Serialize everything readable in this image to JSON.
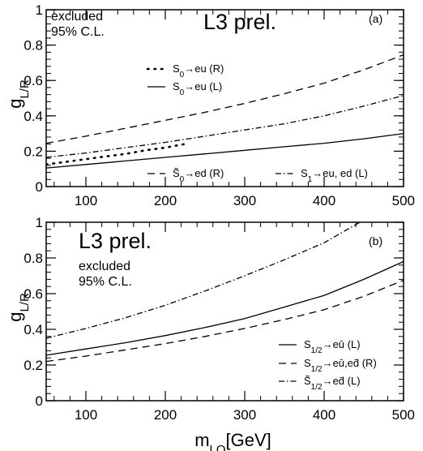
{
  "chart_data": [
    {
      "type": "line",
      "panel_tag": "(a)",
      "experiment_label": "L3 prel.",
      "region_label": [
        "excluded",
        "95% C.L."
      ],
      "ylabel_main": "g",
      "ylabel_sub": "L/R",
      "xlabel_main": "",
      "xlabel_sub": "",
      "xlabel_unit": "",
      "xlim": [
        50,
        500
      ],
      "ylim": [
        0,
        1
      ],
      "x_ticks": [
        100,
        200,
        300,
        400,
        500
      ],
      "y_ticks": [
        0,
        0.2,
        0.4,
        0.6,
        0.8,
        1
      ],
      "y_tick_labels": [
        "0",
        "0.2",
        "0.4",
        "0.6",
        "0.8",
        "1"
      ],
      "legend_placement": [
        "top-left",
        "bottom"
      ],
      "series": [
        {
          "legend": [
            {
              "t": "S"
            },
            {
              "t": "0",
              "sub": true
            },
            {
              "t": "→eu (R)"
            }
          ],
          "style": "dotted",
          "x": [
            50,
            75,
            100,
            125,
            150,
            175,
            200,
            230
          ],
          "y": [
            0.125,
            0.14,
            0.155,
            0.17,
            0.185,
            0.205,
            0.22,
            0.245
          ]
        },
        {
          "legend": [
            {
              "t": "S"
            },
            {
              "t": "0",
              "sub": true
            },
            {
              "t": "→eu (L)"
            }
          ],
          "style": "solid",
          "x": [
            50,
            100,
            150,
            200,
            250,
            300,
            350,
            400,
            450,
            500
          ],
          "y": [
            0.105,
            0.125,
            0.145,
            0.165,
            0.185,
            0.205,
            0.225,
            0.245,
            0.27,
            0.3
          ]
        },
        {
          "legend": [
            {
              "t": "S̃"
            },
            {
              "t": "0",
              "sub": true
            },
            {
              "t": "→ed (R)"
            }
          ],
          "style": "dashed",
          "x": [
            50,
            100,
            150,
            200,
            250,
            300,
            350,
            400,
            450,
            500
          ],
          "y": [
            0.245,
            0.285,
            0.33,
            0.375,
            0.42,
            0.47,
            0.525,
            0.585,
            0.66,
            0.745
          ]
        },
        {
          "legend": [
            {
              "t": "S"
            },
            {
              "t": "1",
              "sub": true
            },
            {
              "t": "→eu, ed (L)"
            }
          ],
          "style": "dashdot",
          "x": [
            50,
            100,
            150,
            200,
            250,
            300,
            350,
            400,
            450,
            500
          ],
          "y": [
            0.165,
            0.19,
            0.22,
            0.25,
            0.285,
            0.32,
            0.355,
            0.4,
            0.455,
            0.515
          ]
        }
      ]
    },
    {
      "type": "line",
      "panel_tag": "(b)",
      "experiment_label": "L3 prel.",
      "region_label": [
        "excluded",
        "95% C.L."
      ],
      "ylabel_main": "g",
      "ylabel_sub": "L/R",
      "xlabel_main": "m",
      "xlabel_sub": "LQ",
      "xlabel_unit": "[GeV]",
      "xlim": [
        50,
        500
      ],
      "ylim": [
        0,
        1
      ],
      "x_ticks": [
        100,
        200,
        300,
        400,
        500
      ],
      "y_ticks": [
        0,
        0.2,
        0.4,
        0.6,
        0.8,
        1
      ],
      "y_tick_labels": [
        "0",
        "0.2",
        "0.4",
        "0.6",
        "0.8",
        "1"
      ],
      "legend_placement": "bottom-right",
      "series": [
        {
          "legend": [
            {
              "t": "S"
            },
            {
              "t": "1/2",
              "sub": true
            },
            {
              "t": "→eū (L)"
            }
          ],
          "style": "solid",
          "x": [
            50,
            100,
            150,
            200,
            250,
            300,
            350,
            400,
            450,
            500
          ],
          "y": [
            0.255,
            0.29,
            0.325,
            0.365,
            0.41,
            0.46,
            0.525,
            0.59,
            0.68,
            0.78
          ]
        },
        {
          "legend": [
            {
              "t": "S"
            },
            {
              "t": "1/2",
              "sub": true
            },
            {
              "t": "→eū,ed̄ (R)"
            }
          ],
          "style": "dashed",
          "x": [
            50,
            100,
            150,
            200,
            250,
            300,
            350,
            400,
            450,
            500
          ],
          "y": [
            0.22,
            0.25,
            0.285,
            0.32,
            0.36,
            0.405,
            0.455,
            0.51,
            0.585,
            0.675
          ]
        },
        {
          "legend": [
            {
              "t": "S̃"
            },
            {
              "t": "1/2",
              "sub": true
            },
            {
              "t": "→ed̄ (L)"
            }
          ],
          "style": "dashdot",
          "x": [
            50,
            100,
            150,
            200,
            250,
            300,
            350,
            400,
            445
          ],
          "y": [
            0.35,
            0.405,
            0.465,
            0.535,
            0.615,
            0.7,
            0.79,
            0.885,
            1.0
          ]
        }
      ]
    }
  ]
}
